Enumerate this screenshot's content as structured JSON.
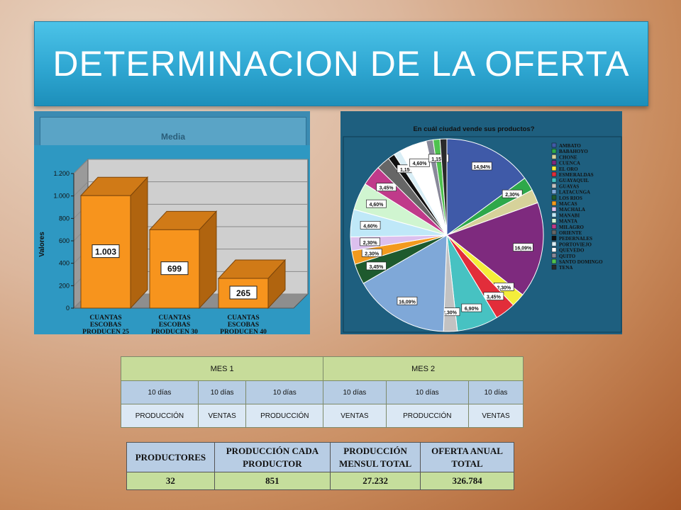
{
  "title": "DETERMINACION DE LA OFERTA",
  "bar_chart": {
    "panel_label": "Media",
    "ylabel": "Valores",
    "chart_data": {
      "type": "bar",
      "categories": [
        "CUANTAS ESCOBAS PRODUCEN 25",
        "CUANTAS ESCOBAS PRODUCEN 30",
        "CUANTAS ESCOBAS PRODUCEN 40"
      ],
      "category_lines": [
        [
          "CUANTAS",
          "ESCOBAS",
          "PRODUCEN 25"
        ],
        [
          "CUANTAS",
          "ESCOBAS",
          "PRODUCEN 30"
        ],
        [
          "CUANTAS",
          "ESCOBAS",
          "PRODUCEN 40"
        ]
      ],
      "values": [
        1003,
        699,
        265
      ],
      "value_labels": [
        "1.003",
        "699",
        "265"
      ],
      "yticks": [
        0,
        200,
        400,
        600,
        800,
        1000,
        1200
      ],
      "ytick_labels": [
        "0",
        "200",
        "400",
        "600",
        "800",
        "1.000",
        "1.200"
      ],
      "ylim": [
        0,
        1200
      ],
      "bar_color": "#f7941d",
      "bar_side_color": "#b0640f",
      "bar_top_color": "#d07a17"
    }
  },
  "pie_chart": {
    "chart_data": {
      "type": "pie",
      "title": "En cuál ciudad vende sus productos?",
      "labels": [
        "AMBATO",
        "BABAHOYO",
        "CHONE",
        "CUENCA",
        "EL ORO",
        "ESMERALDAS",
        "GUAYAQUIL",
        "GUAYAS",
        "LATACUNGA",
        "LOS RIOS",
        "MACAS",
        "MACHALA",
        "MANABI",
        "MANTA",
        "MILAGRO",
        "ORIENTE",
        "PEDERNALES",
        "PORTOVIEJO",
        "QUEVEDO",
        "QUITO",
        "SANTO DOMINGO",
        "TENA"
      ],
      "values": [
        14.94,
        2.3,
        2.3,
        16.09,
        2.3,
        3.45,
        6.9,
        2.3,
        16.09,
        3.45,
        2.3,
        2.3,
        4.6,
        4.6,
        3.45,
        2.3,
        1.15,
        1.15,
        4.6,
        1.15,
        1.15,
        1.15
      ],
      "value_labels": [
        "14,94%",
        "2,30%",
        "",
        "16,09%",
        "2,30%",
        "3,45%",
        "6,90%",
        "2,30%",
        "16,09%",
        "3,45%",
        "2,30%",
        "2,30%",
        "4,60%",
        "4,60%",
        "3,45%",
        "",
        "",
        "1,15%",
        "4,60%",
        "",
        "1,15%",
        ""
      ],
      "colors": [
        "#3f5aa8",
        "#2ea84a",
        "#d6d29a",
        "#7e2a7e",
        "#f4ee3a",
        "#e22d3a",
        "#47c2c2",
        "#c2c2c2",
        "#7fa8d8",
        "#1e5a2e",
        "#f39a1e",
        "#dcc0ee",
        "#bfe8f8",
        "#d0f5d0",
        "#c03a8a",
        "#666666",
        "#111111",
        "#d9eef6",
        "#ffffff",
        "#888899",
        "#4fc24f",
        "#2a2a2a"
      ]
    }
  },
  "mes_table": {
    "headers": [
      "MES 1",
      "MES 2"
    ],
    "dias": [
      "10 días",
      "10 días",
      "10 días",
      "10 días",
      "10 días",
      "10 días"
    ],
    "tipos": [
      "PRODUCCIÓN",
      "VENTAS",
      "PRODUCCIÓN",
      "VENTAS",
      "PRODUCCIÓN",
      "VENTAS"
    ]
  },
  "prod_table": {
    "headers": [
      "PRODUCTORES",
      "PRODUCCIÓN CADA PRODUCTOR",
      "PRODUCCIÓN MENSUL TOTAL",
      "OFERTA ANUAL TOTAL"
    ],
    "values": [
      "32",
      "851",
      "27.232",
      "326.784"
    ]
  }
}
